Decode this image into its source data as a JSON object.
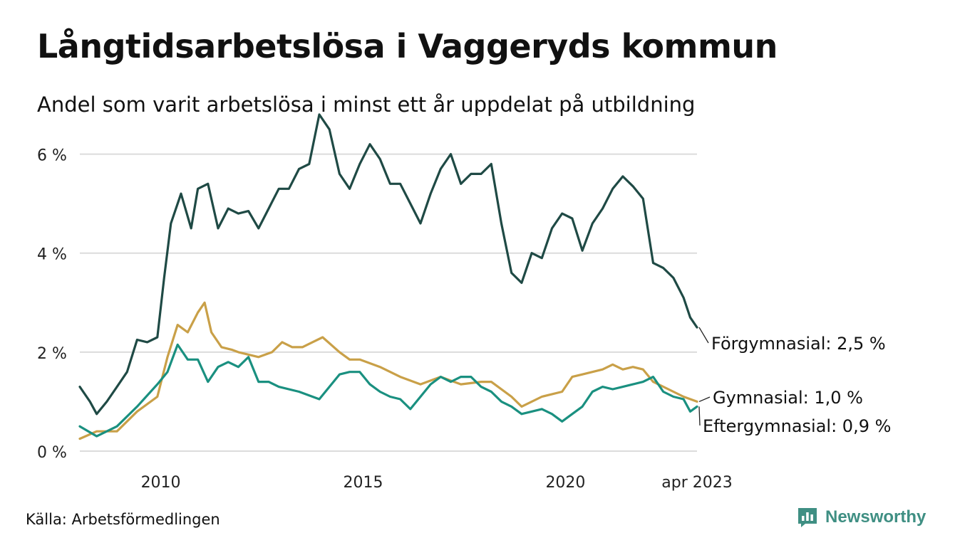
{
  "title": "Långtidsarbetslösa i Vaggeryds kommun",
  "subtitle": "Andel som varit arbetslösa i minst ett år uppdelat på utbildning",
  "source": "Källa: Arbetsförmedlingen",
  "brand": "Newsworthy",
  "colors": {
    "forgymnasial": "#1f4a45",
    "gymnasial": "#c9a048",
    "eftergymnasial": "#1a9080",
    "grid": "#dcdcdc",
    "brand": "#3f8f83"
  },
  "chart_data": {
    "type": "line",
    "title": "Långtidsarbetslösa i Vaggeryds kommun",
    "subtitle": "Andel som varit arbetslösa i minst ett år uppdelat på utbildning",
    "x_range": [
      "2008-01",
      "2023-04"
    ],
    "ylim": [
      0,
      7
    ],
    "y_ticks": [
      0,
      2,
      4,
      6
    ],
    "y_tick_labels": [
      "0 %",
      "2 %",
      "4 %",
      "6 %"
    ],
    "x_ticks": [
      "2010-01",
      "2015-01",
      "2020-01",
      "2023-04"
    ],
    "x_tick_labels": [
      "2010",
      "2015",
      "2020",
      "apr 2023"
    ],
    "grid": "horizontal",
    "series": [
      {
        "key": "forgymnasial",
        "end_label": "Förgymnasial: 2,5 %",
        "points": [
          [
            "2008-01",
            1.3
          ],
          [
            "2008-04",
            1.0
          ],
          [
            "2008-06",
            0.75
          ],
          [
            "2008-09",
            1.0
          ],
          [
            "2008-12",
            1.3
          ],
          [
            "2009-03",
            1.6
          ],
          [
            "2009-06",
            2.25
          ],
          [
            "2009-09",
            2.2
          ],
          [
            "2009-12",
            2.3
          ],
          [
            "2010-02",
            3.5
          ],
          [
            "2010-04",
            4.6
          ],
          [
            "2010-07",
            5.2
          ],
          [
            "2010-10",
            4.5
          ],
          [
            "2010-12",
            5.3
          ],
          [
            "2011-03",
            5.4
          ],
          [
            "2011-06",
            4.5
          ],
          [
            "2011-09",
            4.9
          ],
          [
            "2011-12",
            4.8
          ],
          [
            "2012-03",
            4.85
          ],
          [
            "2012-06",
            4.5
          ],
          [
            "2012-09",
            4.9
          ],
          [
            "2012-12",
            5.3
          ],
          [
            "2013-03",
            5.3
          ],
          [
            "2013-06",
            5.7
          ],
          [
            "2013-09",
            5.8
          ],
          [
            "2013-12",
            6.8
          ],
          [
            "2014-03",
            6.5
          ],
          [
            "2014-06",
            5.6
          ],
          [
            "2014-09",
            5.3
          ],
          [
            "2014-12",
            5.8
          ],
          [
            "2015-03",
            6.2
          ],
          [
            "2015-06",
            5.9
          ],
          [
            "2015-09",
            5.4
          ],
          [
            "2015-12",
            5.4
          ],
          [
            "2016-03",
            5.0
          ],
          [
            "2016-06",
            4.6
          ],
          [
            "2016-09",
            5.2
          ],
          [
            "2016-12",
            5.7
          ],
          [
            "2017-03",
            6.0
          ],
          [
            "2017-06",
            5.4
          ],
          [
            "2017-09",
            5.6
          ],
          [
            "2017-12",
            5.6
          ],
          [
            "2018-03",
            5.8
          ],
          [
            "2018-06",
            4.6
          ],
          [
            "2018-09",
            3.6
          ],
          [
            "2018-12",
            3.4
          ],
          [
            "2019-03",
            4.0
          ],
          [
            "2019-06",
            3.9
          ],
          [
            "2019-09",
            4.5
          ],
          [
            "2019-12",
            4.8
          ],
          [
            "2020-03",
            4.7
          ],
          [
            "2020-06",
            4.05
          ],
          [
            "2020-09",
            4.6
          ],
          [
            "2020-12",
            4.9
          ],
          [
            "2021-03",
            5.3
          ],
          [
            "2021-06",
            5.55
          ],
          [
            "2021-09",
            5.35
          ],
          [
            "2021-12",
            5.1
          ],
          [
            "2022-03",
            3.8
          ],
          [
            "2022-06",
            3.7
          ],
          [
            "2022-09",
            3.5
          ],
          [
            "2022-12",
            3.1
          ],
          [
            "2023-02",
            2.7
          ],
          [
            "2023-04",
            2.5
          ]
        ]
      },
      {
        "key": "gymnasial",
        "end_label": "Gymnasial: 1,0 %",
        "points": [
          [
            "2008-01",
            0.25
          ],
          [
            "2008-06",
            0.4
          ],
          [
            "2008-12",
            0.4
          ],
          [
            "2009-06",
            0.8
          ],
          [
            "2009-12",
            1.1
          ],
          [
            "2010-03",
            1.9
          ],
          [
            "2010-06",
            2.55
          ],
          [
            "2010-09",
            2.4
          ],
          [
            "2010-12",
            2.8
          ],
          [
            "2011-02",
            3.0
          ],
          [
            "2011-04",
            2.4
          ],
          [
            "2011-07",
            2.1
          ],
          [
            "2011-10",
            2.05
          ],
          [
            "2011-12",
            2.0
          ],
          [
            "2012-06",
            1.9
          ],
          [
            "2012-10",
            2.0
          ],
          [
            "2013-01",
            2.2
          ],
          [
            "2013-04",
            2.1
          ],
          [
            "2013-07",
            2.1
          ],
          [
            "2013-10",
            2.2
          ],
          [
            "2014-01",
            2.3
          ],
          [
            "2014-06",
            2.0
          ],
          [
            "2014-09",
            1.85
          ],
          [
            "2014-12",
            1.85
          ],
          [
            "2015-06",
            1.7
          ],
          [
            "2015-12",
            1.5
          ],
          [
            "2016-06",
            1.35
          ],
          [
            "2016-12",
            1.5
          ],
          [
            "2017-06",
            1.35
          ],
          [
            "2017-12",
            1.4
          ],
          [
            "2018-03",
            1.4
          ],
          [
            "2018-09",
            1.1
          ],
          [
            "2018-12",
            0.9
          ],
          [
            "2019-06",
            1.1
          ],
          [
            "2019-12",
            1.2
          ],
          [
            "2020-03",
            1.5
          ],
          [
            "2020-06",
            1.55
          ],
          [
            "2020-12",
            1.65
          ],
          [
            "2021-03",
            1.75
          ],
          [
            "2021-06",
            1.65
          ],
          [
            "2021-09",
            1.7
          ],
          [
            "2021-12",
            1.65
          ],
          [
            "2022-03",
            1.4
          ],
          [
            "2022-09",
            1.2
          ],
          [
            "2022-12",
            1.1
          ],
          [
            "2023-04",
            1.0
          ]
        ]
      },
      {
        "key": "eftergymnasial",
        "end_label": "Eftergymnasial: 0,9 %",
        "points": [
          [
            "2008-01",
            0.5
          ],
          [
            "2008-06",
            0.3
          ],
          [
            "2008-12",
            0.5
          ],
          [
            "2009-06",
            0.9
          ],
          [
            "2009-12",
            1.35
          ],
          [
            "2010-03",
            1.6
          ],
          [
            "2010-06",
            2.15
          ],
          [
            "2010-09",
            1.85
          ],
          [
            "2010-12",
            1.85
          ],
          [
            "2011-03",
            1.4
          ],
          [
            "2011-06",
            1.7
          ],
          [
            "2011-09",
            1.8
          ],
          [
            "2011-12",
            1.7
          ],
          [
            "2012-03",
            1.9
          ],
          [
            "2012-06",
            1.4
          ],
          [
            "2012-09",
            1.4
          ],
          [
            "2012-12",
            1.3
          ],
          [
            "2013-06",
            1.2
          ],
          [
            "2013-12",
            1.05
          ],
          [
            "2014-03",
            1.3
          ],
          [
            "2014-06",
            1.55
          ],
          [
            "2014-09",
            1.6
          ],
          [
            "2014-12",
            1.6
          ],
          [
            "2015-03",
            1.35
          ],
          [
            "2015-06",
            1.2
          ],
          [
            "2015-09",
            1.1
          ],
          [
            "2015-12",
            1.05
          ],
          [
            "2016-03",
            0.85
          ],
          [
            "2016-06",
            1.1
          ],
          [
            "2016-09",
            1.35
          ],
          [
            "2016-12",
            1.5
          ],
          [
            "2017-03",
            1.4
          ],
          [
            "2017-06",
            1.5
          ],
          [
            "2017-09",
            1.5
          ],
          [
            "2017-12",
            1.3
          ],
          [
            "2018-03",
            1.2
          ],
          [
            "2018-06",
            1.0
          ],
          [
            "2018-09",
            0.9
          ],
          [
            "2018-12",
            0.75
          ],
          [
            "2019-06",
            0.85
          ],
          [
            "2019-09",
            0.75
          ],
          [
            "2019-12",
            0.6
          ],
          [
            "2020-03",
            0.75
          ],
          [
            "2020-06",
            0.9
          ],
          [
            "2020-09",
            1.2
          ],
          [
            "2020-12",
            1.3
          ],
          [
            "2021-03",
            1.25
          ],
          [
            "2021-06",
            1.3
          ],
          [
            "2021-09",
            1.35
          ],
          [
            "2021-12",
            1.4
          ],
          [
            "2022-03",
            1.5
          ],
          [
            "2022-06",
            1.2
          ],
          [
            "2022-09",
            1.1
          ],
          [
            "2022-12",
            1.05
          ],
          [
            "2023-02",
            0.8
          ],
          [
            "2023-04",
            0.9
          ]
        ]
      }
    ]
  }
}
